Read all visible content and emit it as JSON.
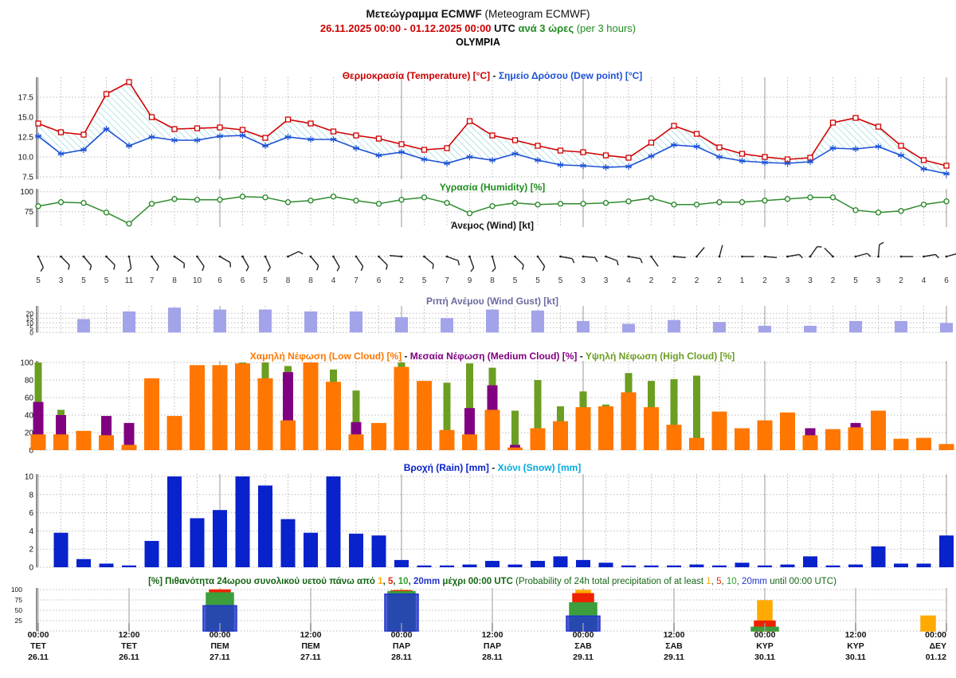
{
  "header": {
    "title_greek": "Μετεώγραμμα ECMWF",
    "title_latin": " (Meteogram ECMWF)",
    "date_range": "26.11.2025 00:00 - 01.12.2025 00:00",
    "utc": " UTC ",
    "interval_greek": "ανά 3 ώρες",
    "interval_latin": " (per 3 hours)",
    "station": "OLYMPIA"
  },
  "panel_titles": {
    "temp_red": "Θερμοκρασία (Temperature) [°C]",
    "sep": " - ",
    "temp_blue": "Σημείο Δρόσου (Dew point) [°C]",
    "humidity": "Υγρασία (Humidity) [%]",
    "wind": "Άνεμος (Wind) [kt]",
    "gust": "Ριπή Ανέμου (Wind Gust) [kt]",
    "cloud_low": "Χαμηλή Νέφωση (Low Cloud) [%]",
    "cloud_med": "Μεσαία Νέφωση (Medium Cloud) [%]",
    "cloud_high": "Υψηλή Νέφωση (High Cloud) [%]",
    "rain": "Βροχή (Rain) [mm]",
    "snow": "Χιόνι (Snow) [mm]",
    "prob_lead": "[%] Πιθανότητα 24ωρου συνολικού υετού πάνω από ",
    "prob_n1": "1",
    "prob_c1": ", ",
    "prob_n2": "5",
    "prob_c2": ", ",
    "prob_n3": "10",
    "prob_c3": ", ",
    "prob_n4": "20mm",
    "prob_mid": " μέχρι 00:00 UTC ",
    "prob_en_lead": "(Probability of 24h total precipitation of at least ",
    "prob_en_n1": "1",
    "prob_en_c1": ", ",
    "prob_en_n2": "5",
    "prob_en_c2": ", ",
    "prob_en_n3": "10",
    "prob_en_c3": ", ",
    "prob_en_n4": "20mm",
    "prob_en_tail": " until 00:00 UTC)"
  },
  "colors": {
    "temperature": "#d10000",
    "dew_point": "#1c52d6",
    "hatch": "#7fcfd6",
    "humidity": "#2e8b2e",
    "wind": "#222222",
    "gust_bar": "#a3a3ea",
    "cloud_low": "#ff7700",
    "cloud_med": "#800080",
    "cloud_high": "#6b9e22",
    "rain": "#0822cc",
    "snow": "#00aadd",
    "prob_1mm": "#ffaa00",
    "prob_5mm": "#ee2200",
    "prob_10mm": "#3c9e3c",
    "prob_20mm": "#2233cc",
    "grid": "#bbbbbb",
    "grid_midnight": "#999999",
    "axis": "#444444"
  },
  "axis": {
    "labels": [
      {
        "time": "00:00",
        "day": "ΤΕΤ",
        "date": "26.11"
      },
      {
        "time": "12:00",
        "day": "ΤΕΤ",
        "date": "26.11"
      },
      {
        "time": "00:00",
        "day": "ΠΕΜ",
        "date": "27.11"
      },
      {
        "time": "12:00",
        "day": "ΠΕΜ",
        "date": "27.11"
      },
      {
        "time": "00:00",
        "day": "ΠΑΡ",
        "date": "28.11"
      },
      {
        "time": "12:00",
        "day": "ΠΑΡ",
        "date": "28.11"
      },
      {
        "time": "00:00",
        "day": "ΣΑΒ",
        "date": "29.11"
      },
      {
        "time": "12:00",
        "day": "ΣΑΒ",
        "date": "29.11"
      },
      {
        "time": "00:00",
        "day": "ΚΥΡ",
        "date": "30.11"
      },
      {
        "time": "12:00",
        "day": "ΚΥΡ",
        "date": "30.11"
      },
      {
        "time": "00:00",
        "day": "ΔΕΥ",
        "date": "01.12"
      }
    ]
  },
  "chart_data": [
    {
      "type": "line",
      "panel": "temperature_dewpoint",
      "x_step_hours": 3,
      "ylabels": [
        "17.5",
        "15.0",
        "12.5",
        "10.0",
        "7.5"
      ],
      "yticks": [
        17.5,
        15.0,
        12.5,
        10.0,
        7.5
      ],
      "series": [
        {
          "name": "Temperature [°C]",
          "color": "#d10000",
          "marker": "open-square",
          "values": [
            14.2,
            13.1,
            12.8,
            17.9,
            19.4,
            15.0,
            13.5,
            13.6,
            13.7,
            13.4,
            12.4,
            14.7,
            14.2,
            13.2,
            12.7,
            12.3,
            11.6,
            10.9,
            11.1,
            14.5,
            12.7,
            12.1,
            11.4,
            10.8,
            10.6,
            10.2,
            9.9,
            11.8,
            13.9,
            12.9,
            11.2,
            10.4,
            10.0,
            9.7,
            9.9,
            14.3,
            14.9,
            13.8,
            11.4,
            9.6,
            8.9
          ]
        },
        {
          "name": "Dew point [°C]",
          "color": "#1c52d6",
          "marker": "asterisk",
          "values": [
            12.6,
            10.4,
            10.9,
            13.5,
            11.4,
            12.5,
            12.1,
            12.1,
            12.6,
            12.7,
            11.4,
            12.5,
            12.2,
            12.2,
            11.1,
            10.2,
            10.6,
            9.7,
            9.2,
            10.0,
            9.6,
            10.4,
            9.6,
            9.0,
            8.9,
            8.7,
            8.8,
            10.1,
            11.5,
            11.3,
            10.0,
            9.5,
            9.3,
            9.2,
            9.4,
            11.1,
            11.0,
            11.3,
            10.2,
            8.5,
            7.9
          ]
        }
      ],
      "fill_between": "cyan-hatch"
    },
    {
      "type": "line",
      "panel": "humidity",
      "ylabels": [
        "100",
        "75"
      ],
      "yticks": [
        100,
        75
      ],
      "series": [
        {
          "name": "Humidity [%]",
          "color": "#2e8b2e",
          "marker": "open-circle",
          "values": [
            82,
            87,
            86,
            74,
            60,
            85,
            91,
            90,
            90,
            94,
            93,
            87,
            89,
            94,
            89,
            85,
            90,
            93,
            86,
            73,
            82,
            86,
            84,
            85,
            85,
            86,
            88,
            92,
            84,
            84,
            87,
            87,
            89,
            91,
            93,
            93,
            77,
            74,
            76,
            84,
            88
          ]
        }
      ]
    },
    {
      "type": "wind-barbs",
      "panel": "wind",
      "speeds_kt": [
        5,
        3,
        5,
        5,
        11,
        7,
        8,
        10,
        6,
        6,
        5,
        8,
        8,
        4,
        7,
        6,
        2,
        5,
        7,
        9,
        8,
        5,
        5,
        5,
        3,
        3,
        4,
        2,
        2,
        2,
        2,
        1,
        2,
        3,
        3,
        2,
        5,
        3,
        2,
        4,
        6
      ],
      "barb_angles_deg": [
        65,
        45,
        50,
        45,
        80,
        55,
        35,
        55,
        30,
        60,
        65,
        -25,
        50,
        60,
        55,
        45,
        185,
        40,
        20,
        70,
        75,
        45,
        55,
        10,
        5,
        20,
        10,
        55,
        5,
        -50,
        -75,
        0,
        5,
        -10,
        -55,
        -135,
        -15,
        -85,
        0,
        -10,
        -15
      ]
    },
    {
      "type": "bar",
      "panel": "wind_gust",
      "ylabels": [
        "20",
        "15",
        "10",
        "5",
        "0"
      ],
      "yticks": [
        20,
        15,
        10,
        5,
        0
      ],
      "x_step_hours": 6,
      "values": [
        14,
        22,
        26,
        24,
        24,
        22,
        22,
        16,
        15,
        24,
        23,
        12,
        9,
        13,
        11,
        7,
        7,
        12,
        12,
        10
      ]
    },
    {
      "type": "bar",
      "panel": "cloud_cover",
      "ylabels": [
        "100",
        "80",
        "60",
        "40",
        "20",
        "0"
      ],
      "yticks": [
        100,
        80,
        60,
        40,
        20,
        0
      ],
      "series": [
        {
          "name": "Low Cloud [%]",
          "color": "#ff7700",
          "values": [
            18,
            18,
            22,
            17,
            6,
            82,
            39,
            97,
            97,
            99,
            82,
            34,
            100,
            78,
            18,
            31,
            95,
            79,
            23,
            18,
            46,
            3,
            25,
            33,
            49,
            50,
            66,
            49,
            29,
            14,
            44,
            25,
            34,
            43,
            17,
            24,
            26,
            45,
            13,
            14,
            7
          ]
        },
        {
          "name": "Medium Cloud [%]",
          "color": "#800080",
          "values": [
            55,
            40,
            0,
            39,
            31,
            0,
            0,
            0,
            0,
            0,
            0,
            89,
            0,
            0,
            32,
            0,
            0,
            0,
            0,
            48,
            74,
            6,
            0,
            0,
            0,
            0,
            0,
            0,
            0,
            0,
            0,
            0,
            0,
            0,
            25,
            0,
            31,
            0,
            0,
            0,
            0
          ]
        },
        {
          "name": "High Cloud [%]",
          "color": "#6b9e22",
          "values": [
            100,
            46,
            0,
            0,
            0,
            0,
            0,
            0,
            0,
            100,
            100,
            96,
            0,
            92,
            68,
            0,
            100,
            0,
            77,
            99,
            94,
            45,
            80,
            50,
            67,
            52,
            88,
            79,
            81,
            85,
            0,
            0,
            0,
            0,
            0,
            0,
            0,
            0,
            0,
            0,
            0
          ]
        }
      ]
    },
    {
      "type": "bar",
      "panel": "rain_snow",
      "ylabels": [
        "10",
        "8",
        "6",
        "4",
        "2",
        "0"
      ],
      "yticks": [
        10,
        8,
        6,
        4,
        2,
        0
      ],
      "rain_values": [
        3.8,
        0.9,
        0.4,
        0.2,
        2.9,
        10,
        5.4,
        6.3,
        10,
        9.0,
        5.3,
        3.8,
        10,
        3.7,
        3.5,
        0.8,
        0.2,
        0.2,
        0.3,
        0.7,
        0.3,
        0.7,
        1.2,
        0.8,
        0.5,
        0.2,
        0.2,
        0.2,
        0.3,
        0.2,
        0.5,
        0.2,
        0.3,
        1.2,
        0.2,
        0.3,
        2.3,
        0.4,
        0.4,
        3.5
      ],
      "snow_values": []
    },
    {
      "type": "nested-box",
      "panel": "precip_probability",
      "ylabels": [
        "100",
        "75",
        "50",
        "25"
      ],
      "yticks": [
        100,
        75,
        50,
        25
      ],
      "at_labels": [
        "27.11",
        "28.11",
        "29.11",
        "30.11",
        "01.12"
      ],
      "groups": [
        {
          "p1": 99,
          "p5": 99,
          "p10": 92,
          "p20": 61
        },
        {
          "p1": 98,
          "p5": 97,
          "p10": 95,
          "p20": 89
        },
        {
          "p1": 98,
          "p5": 90,
          "p10": 68,
          "p20": 36
        },
        {
          "p1": 73,
          "p5": 24,
          "p10": 9,
          "p20": 0
        },
        {
          "p1": 36,
          "p5": 0,
          "p10": 0,
          "p20": 0
        }
      ]
    }
  ]
}
